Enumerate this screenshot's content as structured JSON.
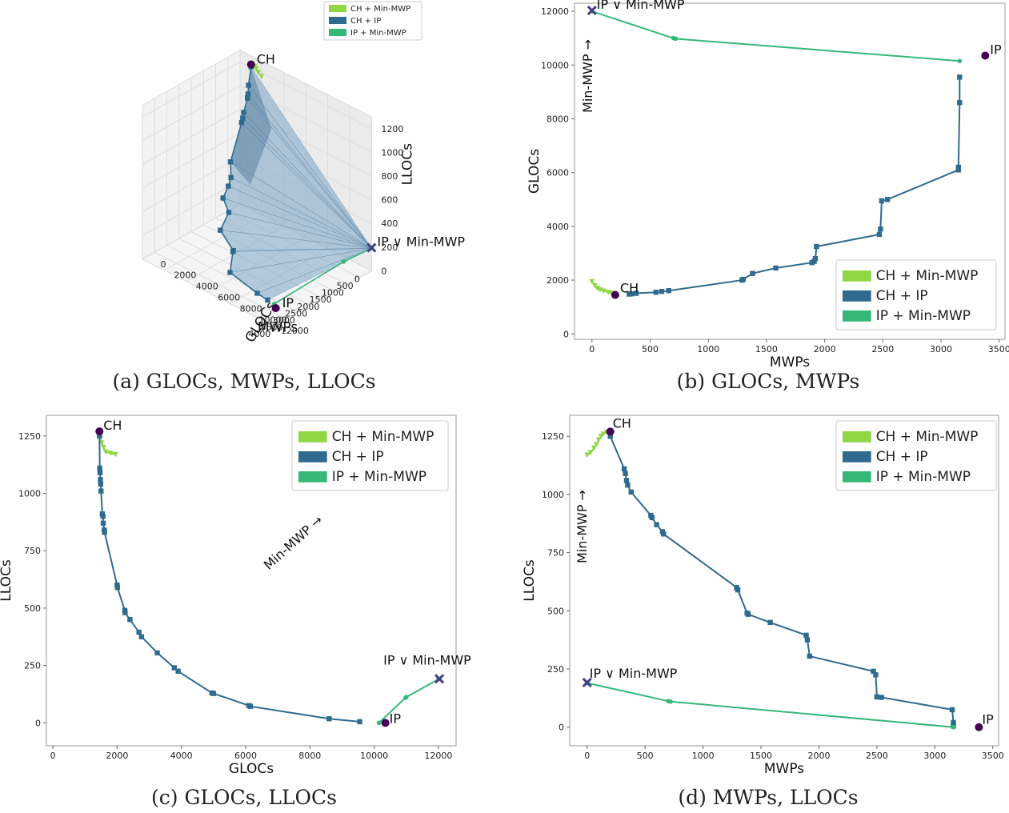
{
  "captions": {
    "a": "(a) GLOCs, MWPs, LLOCs",
    "b": "(b) GLOCs, MWPs",
    "c": "(c) GLOCs, LLOCs",
    "d": "(d) MWPs, LLOCs"
  },
  "colors": {
    "ch_minmwp": "#8fd744",
    "ch_ip": "#2f6b8e",
    "ip_minmwp": "#35b779",
    "endpoint": "#440154",
    "minmwp_point": "#433e85",
    "surface": "#7aa4c4"
  },
  "legend": [
    "CH + Min-MWP",
    "CH + IP",
    "IP + Min-MWP"
  ],
  "chart_data": [
    {
      "id": "a",
      "type": "scatter",
      "subtype": "3d",
      "xlabel": "MWPs",
      "ylabel": "GLOCs",
      "zlabel": "LLOCs",
      "x_ticks": [
        "0",
        "500",
        "1000",
        "1500",
        "2000",
        "2500",
        "3000",
        "3500",
        "4000"
      ],
      "y_ticks": [
        "0",
        "2000",
        "4000",
        "6000",
        "8000",
        "10000",
        "12000"
      ],
      "z_ticks": [
        "0",
        "200",
        "400",
        "600",
        "800",
        "1000",
        "1200"
      ],
      "legend": "top-right",
      "annotations": {
        "ch": "CH",
        "ip": "IP",
        "minmwp": "IP ∨ Min-MWP"
      }
    },
    {
      "id": "b",
      "type": "line",
      "xlabel": "MWPs",
      "ylabel": "GLOCs",
      "xlim": [
        -150,
        3550
      ],
      "ylim": [
        -200,
        12300
      ],
      "x_ticks": [
        0,
        500,
        1000,
        1500,
        2000,
        2500,
        3000,
        3500
      ],
      "y_ticks": [
        0,
        2000,
        4000,
        6000,
        8000,
        10000,
        12000
      ],
      "arrow_label": "Min-MWP →",
      "legend": "bottom-right",
      "annotations": {
        "ch": "CH",
        "ip": "IP",
        "minmwp": "IP ∨ Min-MWP"
      },
      "series": [
        {
          "name": "CH + Min-MWP",
          "marker": "triangle",
          "points": [
            [
              0,
              1950
            ],
            [
              25,
              1800
            ],
            [
              45,
              1700
            ],
            [
              70,
              1650
            ],
            [
              100,
              1600
            ],
            [
              140,
              1550
            ],
            [
              170,
              1520
            ]
          ]
        },
        {
          "name": "CH + IP",
          "marker": "square",
          "points": [
            [
              320,
              1480
            ],
            [
              340,
              1490
            ],
            [
              380,
              1510
            ],
            [
              550,
              1550
            ],
            [
              600,
              1580
            ],
            [
              660,
              1610
            ],
            [
              1290,
              2000
            ],
            [
              1300,
              2030
            ],
            [
              1380,
              2250
            ],
            [
              1580,
              2450
            ],
            [
              1890,
              2650
            ],
            [
              1910,
              2700
            ],
            [
              1920,
              2800
            ],
            [
              1930,
              3250
            ],
            [
              2470,
              3700
            ],
            [
              2480,
              3900
            ],
            [
              2490,
              4950
            ],
            [
              2540,
              5000
            ],
            [
              3150,
              6100
            ],
            [
              3150,
              6200
            ],
            [
              3160,
              8600
            ],
            [
              3160,
              9550
            ]
          ]
        },
        {
          "name": "IP + Min-MWP",
          "marker": "circle",
          "points": [
            [
              0,
              12000
            ],
            [
              700,
              11000
            ],
            [
              720,
              10980
            ],
            [
              3160,
              10150
            ]
          ]
        }
      ],
      "endpoints": {
        "ch": [
          200,
          1450
        ],
        "ip": [
          3380,
          10350
        ],
        "minmwp": [
          0,
          12030
        ]
      }
    },
    {
      "id": "c",
      "type": "line",
      "xlabel": "GLOCs",
      "ylabel": "LLOCs",
      "xlim": [
        -200,
        12550
      ],
      "ylim": [
        -100,
        1340
      ],
      "x_ticks": [
        0,
        2000,
        4000,
        6000,
        8000,
        10000,
        12000
      ],
      "y_ticks": [
        0,
        250,
        500,
        750,
        1000,
        1250
      ],
      "arrow_label": "Min-MWP →",
      "legend": "top-right",
      "annotations": {
        "ch": "CH",
        "ip": "IP",
        "minmwp": "IP ∨ Min-MWP"
      },
      "series": [
        {
          "name": "CH + Min-MWP",
          "marker": "triangle",
          "points": [
            [
              1450,
              1260
            ],
            [
              1480,
              1240
            ],
            [
              1520,
              1220
            ],
            [
              1580,
              1200
            ],
            [
              1650,
              1180
            ],
            [
              1800,
              1175
            ],
            [
              1950,
              1170
            ]
          ]
        },
        {
          "name": "CH + IP",
          "marker": "square",
          "points": [
            [
              1450,
              1250
            ],
            [
              1460,
              1110
            ],
            [
              1470,
              1090
            ],
            [
              1480,
              1060
            ],
            [
              1490,
              1040
            ],
            [
              1500,
              1010
            ],
            [
              1540,
              910
            ],
            [
              1560,
              900
            ],
            [
              1570,
              870
            ],
            [
              1600,
              840
            ],
            [
              1610,
              830
            ],
            [
              2000,
              600
            ],
            [
              2010,
              590
            ],
            [
              2240,
              490
            ],
            [
              2250,
              480
            ],
            [
              2400,
              450
            ],
            [
              2680,
              395
            ],
            [
              2760,
              375
            ],
            [
              3250,
              305
            ],
            [
              3780,
              240
            ],
            [
              3900,
              225
            ],
            [
              4950,
              130
            ],
            [
              5000,
              128
            ],
            [
              6100,
              75
            ],
            [
              6150,
              72
            ],
            [
              8600,
              18
            ],
            [
              9550,
              5
            ]
          ]
        },
        {
          "name": "IP + Min-MWP",
          "marker": "circle",
          "points": [
            [
              10150,
              0
            ],
            [
              10980,
              110
            ],
            [
              11000,
              112
            ],
            [
              12000,
              190
            ]
          ]
        }
      ],
      "endpoints": {
        "ch": [
          1450,
          1270
        ],
        "ip": [
          10350,
          0
        ],
        "minmwp": [
          12030,
          192
        ]
      }
    },
    {
      "id": "d",
      "type": "line",
      "xlabel": "MWPs",
      "ylabel": "LLOCs",
      "xlim": [
        -150,
        3550
      ],
      "ylim": [
        -80,
        1340
      ],
      "x_ticks": [
        0,
        500,
        1000,
        1500,
        2000,
        2500,
        3000,
        3500
      ],
      "y_ticks": [
        0,
        250,
        500,
        750,
        1000,
        1250
      ],
      "arrow_label": "Min-MWP →",
      "legend": "top-right",
      "annotations": {
        "ch": "CH",
        "ip": "IP",
        "minmwp": "IP ∨ Min-MWP"
      },
      "series": [
        {
          "name": "CH + Min-MWP",
          "marker": "triangle",
          "points": [
            [
              0,
              1170
            ],
            [
              30,
              1180
            ],
            [
              60,
              1200
            ],
            [
              80,
              1215
            ],
            [
              100,
              1235
            ],
            [
              120,
              1250
            ],
            [
              140,
              1260
            ],
            [
              170,
              1268
            ]
          ]
        },
        {
          "name": "CH + IP",
          "marker": "square",
          "points": [
            [
              200,
              1250
            ],
            [
              320,
              1110
            ],
            [
              330,
              1090
            ],
            [
              340,
              1060
            ],
            [
              350,
              1040
            ],
            [
              380,
              1010
            ],
            [
              550,
              910
            ],
            [
              560,
              900
            ],
            [
              600,
              870
            ],
            [
              650,
              840
            ],
            [
              660,
              830
            ],
            [
              1290,
              600
            ],
            [
              1300,
              590
            ],
            [
              1380,
              490
            ],
            [
              1390,
              485
            ],
            [
              1580,
              450
            ],
            [
              1890,
              395
            ],
            [
              1900,
              375
            ],
            [
              1920,
              305
            ],
            [
              2470,
              240
            ],
            [
              2490,
              225
            ],
            [
              2500,
              130
            ],
            [
              2540,
              128
            ],
            [
              3150,
              75
            ],
            [
              3160,
              20
            ],
            [
              3160,
              5
            ]
          ]
        },
        {
          "name": "IP + Min-MWP",
          "marker": "circle",
          "points": [
            [
              0,
              190
            ],
            [
              700,
              112
            ],
            [
              720,
              110
            ],
            [
              3160,
              0
            ]
          ]
        }
      ],
      "endpoints": {
        "ch": [
          200,
          1270
        ],
        "ip": [
          3380,
          0
        ],
        "minmwp": [
          0,
          192
        ]
      }
    }
  ]
}
